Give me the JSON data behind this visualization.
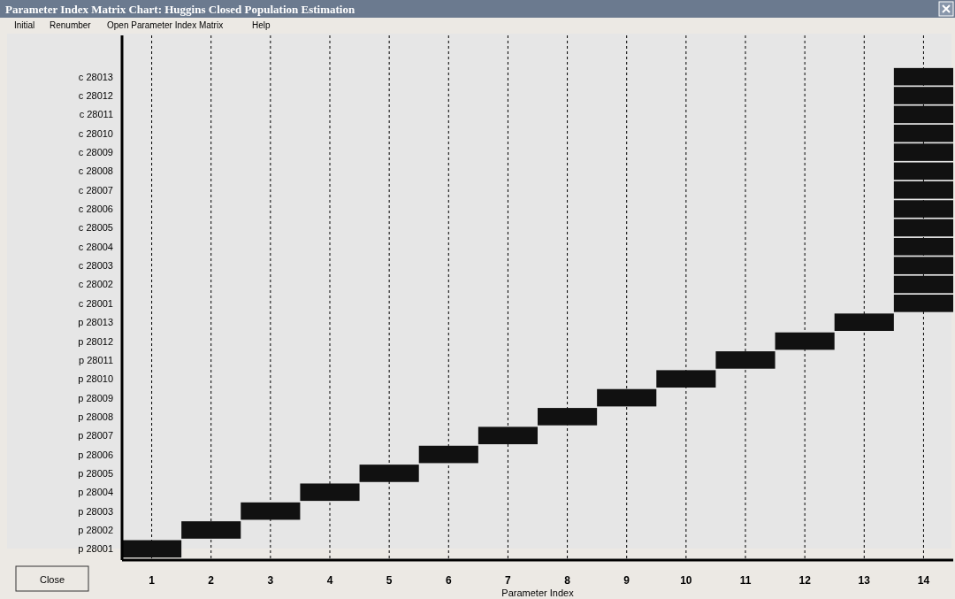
{
  "chart_data": {
    "type": "bar",
    "orientation": "horizontal",
    "title": "Parameter Index Matrix Chart: Huggins Closed Population Estimation",
    "xlabel": "Parameter Index",
    "categories": [
      "c 28013",
      "c 28012",
      "c 28011",
      "c 28010",
      "c 28009",
      "c 28008",
      "c 28007",
      "c 28006",
      "c 28005",
      "c 28004",
      "c 28003",
      "c 28002",
      "c 28001",
      "p 28013",
      "p 28012",
      "p 28011",
      "p 28010",
      "p 28009",
      "p 28008",
      "p 28007",
      "p 28006",
      "p 28005",
      "p 28004",
      "p 28003",
      "p 28002",
      "p 28001"
    ],
    "base": [
      13.5,
      13.5,
      13.5,
      13.5,
      13.5,
      13.5,
      13.5,
      13.5,
      13.5,
      13.5,
      13.5,
      13.5,
      13.5,
      12.5,
      11.5,
      10.5,
      9.5,
      8.5,
      7.5,
      6.5,
      5.5,
      4.5,
      3.5,
      2.5,
      1.5,
      0.5
    ],
    "values": [
      1,
      1,
      1,
      1,
      1,
      1,
      1,
      1,
      1,
      1,
      1,
      1,
      1,
      1,
      1,
      1,
      1,
      1,
      1,
      1,
      1,
      1,
      1,
      1,
      1,
      1
    ],
    "color": "#111111",
    "xlim": [
      0.5,
      14.5
    ],
    "xticks": [
      1,
      2,
      3,
      4,
      5,
      6,
      7,
      8,
      9,
      10,
      11,
      12,
      13,
      14
    ],
    "grid": "x",
    "annotations": [
      "Initial",
      "Renumber",
      "Open Parameter Index Matrix",
      "Help",
      "Close"
    ]
  }
}
